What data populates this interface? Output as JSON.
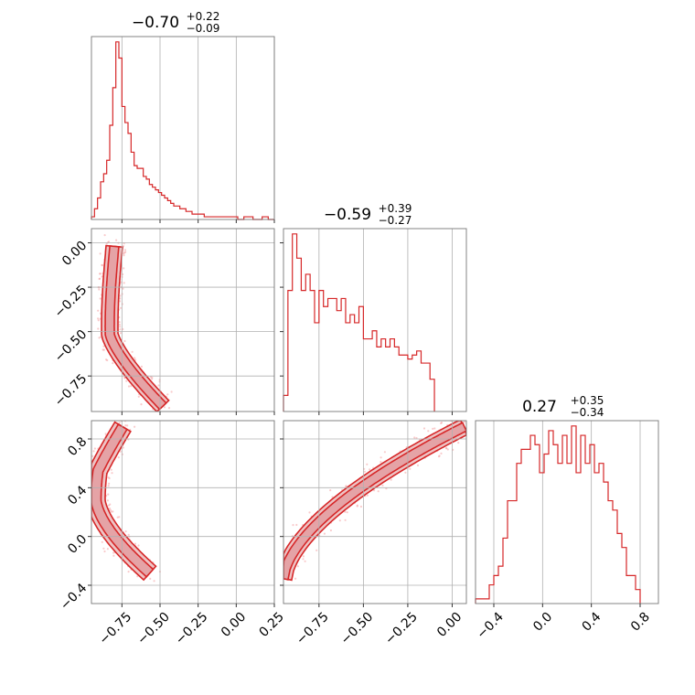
{
  "chart_data": {
    "type": "corner",
    "color": "#d62728",
    "grid": true,
    "diagonal": [
      {
        "title": {
          "median": "−0.70",
          "plus": "+0.22",
          "minus": "−0.09"
        },
        "xlim": [
          -0.95,
          0.25
        ],
        "bin_width": 0.02,
        "bin_start": -0.95,
        "counts": [
          1,
          4,
          8,
          14,
          17,
          22,
          35,
          49,
          66,
          60,
          42,
          36,
          32,
          25,
          20,
          19,
          19,
          16,
          15,
          13,
          12,
          11,
          10,
          9,
          8,
          7,
          6,
          5,
          5,
          4,
          4,
          3,
          3,
          2,
          2,
          2,
          2,
          1,
          1,
          1,
          1,
          1,
          1,
          1,
          1,
          1,
          1,
          1,
          0,
          0,
          1,
          1,
          1,
          0,
          0,
          0,
          1,
          1,
          0,
          0
        ]
      },
      {
        "title": {
          "median": "−0.59",
          "plus": "+0.39",
          "minus": "−0.27"
        },
        "xlim": [
          -0.95,
          0.08
        ],
        "bin_width": 0.025,
        "bin_start": -0.95,
        "counts": [
          4,
          30,
          44,
          38,
          30,
          34,
          30,
          22,
          30,
          26,
          28,
          28,
          25,
          28,
          22,
          24,
          22,
          26,
          18,
          18,
          20,
          16,
          18,
          16,
          18,
          16,
          14,
          14,
          13,
          14,
          15,
          12,
          12,
          8
        ]
      },
      {
        "title": {
          "median": "0.27",
          "plus": "+0.35",
          "minus": "−0.34"
        },
        "xlim": [
          -0.55,
          0.95
        ],
        "bin_width": 0.0375,
        "bin_start": -0.55,
        "counts": [
          1,
          1,
          1,
          4,
          6,
          8,
          14,
          22,
          22,
          30,
          33,
          33,
          36,
          34,
          28,
          32,
          37,
          34,
          30,
          36,
          30,
          38,
          28,
          36,
          30,
          34,
          28,
          30,
          26,
          22,
          20,
          15,
          12,
          6,
          6,
          3
        ]
      }
    ],
    "xticks": [
      [
        "−0.75",
        "−0.50",
        "−0.25",
        "0.00",
        "0.25"
      ],
      [
        "−0.75",
        "−0.50",
        "−0.25",
        "0.00"
      ],
      [
        "−0.4",
        "0.0",
        "0.4",
        "0.8"
      ]
    ],
    "xtick_values": [
      [
        -0.75,
        -0.5,
        -0.25,
        0.0,
        0.25
      ],
      [
        -0.75,
        -0.5,
        -0.25,
        0.0
      ],
      [
        -0.4,
        0.0,
        0.4,
        0.8
      ]
    ],
    "yticks": {
      "row1": {
        "labels": [
          "0.00",
          "−0.25",
          "−0.50",
          "−0.75"
        ],
        "values": [
          0.0,
          -0.25,
          -0.5,
          -0.75
        ],
        "ylim": [
          -0.95,
          0.08
        ]
      },
      "row2": {
        "labels": [
          "0.8",
          "0.4",
          "0.0",
          "−0.4"
        ],
        "values": [
          0.8,
          0.4,
          0.0,
          -0.4
        ],
        "ylim": [
          -0.55,
          0.95
        ]
      }
    }
  }
}
